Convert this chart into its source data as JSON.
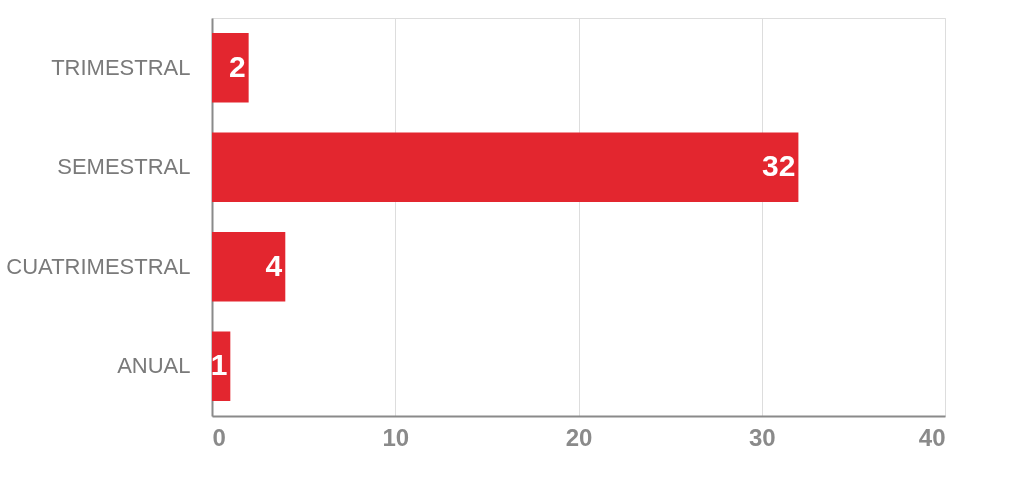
{
  "chart_data": {
    "type": "bar",
    "orientation": "horizontal",
    "categories": [
      "TRIMESTRAL",
      "SEMESTRAL",
      "CUATRIMESTRAL",
      "ANUAL"
    ],
    "values": [
      2,
      32,
      4,
      1
    ],
    "color": "#e3262f",
    "xlim": [
      0,
      40
    ],
    "xticks": [
      0,
      10,
      20,
      30,
      40
    ],
    "grid": "x",
    "data_labels": true
  }
}
